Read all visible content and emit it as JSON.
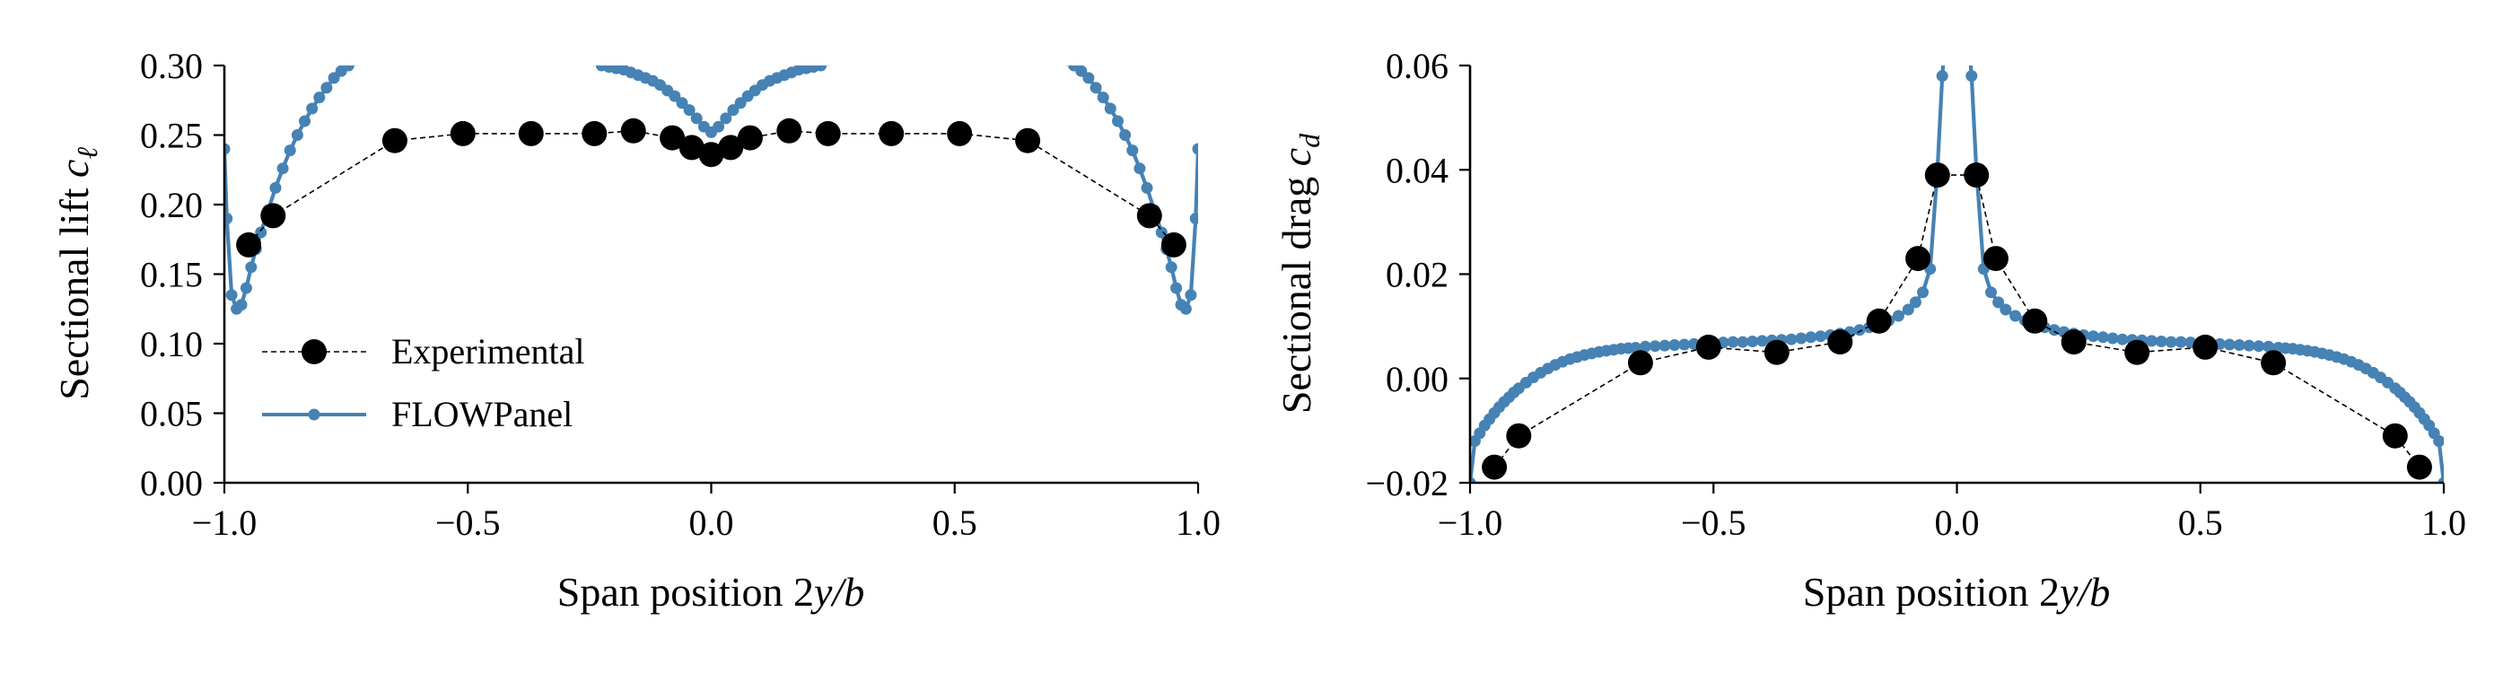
{
  "colors": {
    "experimental": "#000000",
    "flowpanel": "#4682b4",
    "axes": "#000000",
    "background": "#ffffff"
  },
  "chart_data": [
    {
      "type": "line",
      "panel": "left",
      "xlabel_text": "Span position 2",
      "xlabel_math": "y/b",
      "ylabel_text": "Sectional lift ",
      "ylabel_math": "c",
      "ylabel_sub": "ℓ",
      "xlim": [
        -1.0,
        1.0
      ],
      "ylim": [
        0.0,
        0.3
      ],
      "xticks": [
        -1.0,
        -0.5,
        0.0,
        0.5,
        1.0
      ],
      "xtick_labels": [
        "−1.0",
        "−0.5",
        "0.0",
        "0.5",
        "1.0"
      ],
      "yticks": [
        0.0,
        0.05,
        0.1,
        0.15,
        0.2,
        0.25,
        0.3
      ],
      "ytick_labels": [
        "0.00",
        "0.05",
        "0.10",
        "0.15",
        "0.20",
        "0.25",
        "0.30"
      ],
      "grid": false,
      "legend": {
        "placement": "lower-left",
        "entries": [
          {
            "name": "Experimental",
            "series": 0
          },
          {
            "name": "FLOWPanel",
            "series": 1
          }
        ]
      },
      "series": [
        {
          "name": "Experimental",
          "style": "dashed-line-with-large-markers",
          "x": [
            -0.95,
            -0.9,
            -0.65,
            -0.51,
            -0.37,
            -0.24,
            -0.16,
            -0.08,
            -0.04,
            0.0,
            0.04,
            0.08,
            0.16,
            0.24,
            0.37,
            0.51,
            0.65,
            0.9,
            0.95
          ],
          "y": [
            0.171,
            0.192,
            0.246,
            0.251,
            0.251,
            0.251,
            0.253,
            0.248,
            0.241,
            0.236,
            0.241,
            0.248,
            0.253,
            0.251,
            0.251,
            0.251,
            0.246,
            0.192,
            0.171
          ]
        },
        {
          "name": "FLOWPanel",
          "style": "solid-line-with-small-markers",
          "x": [
            -1.0,
            -0.995,
            -0.985,
            -0.975,
            -0.965,
            -0.955,
            -0.945,
            -0.935,
            -0.925,
            -0.91,
            -0.895,
            -0.88,
            -0.865,
            -0.85,
            -0.835,
            -0.82,
            -0.805,
            -0.79,
            -0.775,
            -0.76,
            -0.745,
            -0.73,
            -0.24,
            -0.225,
            -0.21,
            -0.195,
            -0.18,
            -0.165,
            -0.15,
            -0.135,
            -0.12,
            -0.105,
            -0.09,
            -0.075,
            -0.06,
            -0.045,
            -0.03,
            -0.015,
            0.0,
            0.015,
            0.03,
            0.045,
            0.06,
            0.075,
            0.09,
            0.105,
            0.12,
            0.135,
            0.15,
            0.165,
            0.18,
            0.195,
            0.21,
            0.225,
            0.24,
            0.73,
            0.745,
            0.76,
            0.775,
            0.79,
            0.805,
            0.82,
            0.835,
            0.85,
            0.865,
            0.88,
            0.895,
            0.91,
            0.925,
            0.935,
            0.945,
            0.955,
            0.965,
            0.975,
            0.985,
            0.995,
            1.0
          ],
          "y": [
            0.24,
            0.19,
            0.135,
            0.125,
            0.128,
            0.14,
            0.155,
            0.168,
            0.18,
            0.196,
            0.212,
            0.226,
            0.239,
            0.25,
            0.26,
            0.269,
            0.277,
            0.284,
            0.291,
            0.296,
            0.3,
            0.304,
            0.304,
            0.3,
            0.299,
            0.298,
            0.297,
            0.295,
            0.293,
            0.291,
            0.289,
            0.286,
            0.282,
            0.278,
            0.273,
            0.268,
            0.262,
            0.256,
            0.252,
            0.256,
            0.262,
            0.268,
            0.273,
            0.278,
            0.282,
            0.286,
            0.289,
            0.291,
            0.293,
            0.295,
            0.297,
            0.298,
            0.299,
            0.3,
            0.304,
            0.304,
            0.3,
            0.296,
            0.291,
            0.284,
            0.277,
            0.269,
            0.26,
            0.25,
            0.239,
            0.226,
            0.212,
            0.196,
            0.18,
            0.168,
            0.155,
            0.14,
            0.128,
            0.125,
            0.135,
            0.19,
            0.24
          ]
        }
      ]
    },
    {
      "type": "line",
      "panel": "right",
      "xlabel_text": "Span position 2",
      "xlabel_math": "y/b",
      "ylabel_text": "Sectional drag ",
      "ylabel_math": "c",
      "ylabel_sub": "d",
      "xlim": [
        -1.0,
        1.0
      ],
      "ylim": [
        -0.02,
        0.06
      ],
      "xticks": [
        -1.0,
        -0.5,
        0.0,
        0.5,
        1.0
      ],
      "xtick_labels": [
        "−1.0",
        "−0.5",
        "0.0",
        "0.5",
        "1.0"
      ],
      "yticks": [
        -0.02,
        0.0,
        0.02,
        0.04,
        0.06
      ],
      "ytick_labels": [
        "−0.02",
        "0.00",
        "0.02",
        "0.04",
        "0.06"
      ],
      "grid": false,
      "series": [
        {
          "name": "Experimental",
          "style": "dashed-line-with-large-markers",
          "x": [
            -0.95,
            -0.9,
            -0.65,
            -0.51,
            -0.37,
            -0.24,
            -0.16,
            -0.08,
            -0.04,
            0.04,
            0.08,
            0.16,
            0.24,
            0.37,
            0.51,
            0.65,
            0.9,
            0.95
          ],
          "y": [
            -0.017,
            -0.011,
            0.003,
            0.006,
            0.005,
            0.007,
            0.011,
            0.023,
            0.039,
            0.039,
            0.023,
            0.011,
            0.007,
            0.005,
            0.006,
            0.003,
            -0.011,
            -0.017
          ]
        },
        {
          "name": "FLOWPanel",
          "style": "solid-line-with-small-markers",
          "x": [
            -1.0,
            -0.99,
            -0.98,
            -0.97,
            -0.96,
            -0.95,
            -0.94,
            -0.93,
            -0.92,
            -0.91,
            -0.9,
            -0.885,
            -0.87,
            -0.855,
            -0.84,
            -0.825,
            -0.81,
            -0.795,
            -0.78,
            -0.765,
            -0.75,
            -0.735,
            -0.72,
            -0.705,
            -0.69,
            -0.675,
            -0.66,
            -0.64,
            -0.62,
            -0.6,
            -0.58,
            -0.56,
            -0.54,
            -0.52,
            -0.5,
            -0.48,
            -0.46,
            -0.44,
            -0.42,
            -0.4,
            -0.38,
            -0.36,
            -0.34,
            -0.32,
            -0.3,
            -0.28,
            -0.26,
            -0.24,
            -0.22,
            -0.2,
            -0.18,
            -0.16,
            -0.14,
            -0.12,
            -0.1,
            -0.085,
            -0.07,
            -0.055,
            -0.04,
            -0.03,
            -0.02,
            0.02,
            0.03,
            0.04,
            0.055,
            0.07,
            0.085,
            0.1,
            0.12,
            0.14,
            0.16,
            0.18,
            0.2,
            0.22,
            0.24,
            0.26,
            0.28,
            0.3,
            0.32,
            0.34,
            0.36,
            0.38,
            0.4,
            0.42,
            0.44,
            0.46,
            0.48,
            0.5,
            0.52,
            0.54,
            0.56,
            0.58,
            0.6,
            0.62,
            0.64,
            0.66,
            0.675,
            0.69,
            0.705,
            0.72,
            0.735,
            0.75,
            0.765,
            0.78,
            0.795,
            0.81,
            0.825,
            0.84,
            0.855,
            0.87,
            0.885,
            0.9,
            0.91,
            0.92,
            0.93,
            0.94,
            0.95,
            0.96,
            0.97,
            0.98,
            0.99,
            1.0
          ],
          "y": [
            -0.02,
            -0.012,
            -0.0105,
            -0.009,
            -0.0078,
            -0.0066,
            -0.0055,
            -0.0045,
            -0.0036,
            -0.0027,
            -0.0019,
            -0.0008,
            0.0002,
            0.0011,
            0.0019,
            0.0026,
            0.0032,
            0.0037,
            0.0041,
            0.0045,
            0.0048,
            0.0051,
            0.0053,
            0.0055,
            0.0057,
            0.0058,
            0.0059,
            0.0061,
            0.0062,
            0.0063,
            0.0064,
            0.0065,
            0.0066,
            0.0067,
            0.0068,
            0.0069,
            0.007,
            0.007,
            0.0071,
            0.0072,
            0.0073,
            0.0074,
            0.0075,
            0.0077,
            0.0079,
            0.0081,
            0.0083,
            0.0086,
            0.0089,
            0.0093,
            0.0098,
            0.0104,
            0.0111,
            0.012,
            0.0132,
            0.0146,
            0.0165,
            0.021,
            0.04,
            0.058,
            0.07,
            0.07,
            0.058,
            0.04,
            0.021,
            0.0165,
            0.0146,
            0.0132,
            0.012,
            0.0111,
            0.0104,
            0.0098,
            0.0093,
            0.0089,
            0.0086,
            0.0083,
            0.0081,
            0.0079,
            0.0077,
            0.0075,
            0.0074,
            0.0073,
            0.0072,
            0.0071,
            0.007,
            0.007,
            0.0069,
            0.0068,
            0.0067,
            0.0066,
            0.0065,
            0.0064,
            0.0063,
            0.0062,
            0.0061,
            0.0059,
            0.0058,
            0.0057,
            0.0055,
            0.0053,
            0.0051,
            0.0048,
            0.0045,
            0.0041,
            0.0037,
            0.0032,
            0.0026,
            0.0019,
            0.0011,
            0.0002,
            -0.0008,
            -0.0019,
            -0.0027,
            -0.0036,
            -0.0045,
            -0.0055,
            -0.0066,
            -0.0078,
            -0.009,
            -0.0105,
            -0.012,
            -0.02
          ]
        }
      ]
    }
  ]
}
